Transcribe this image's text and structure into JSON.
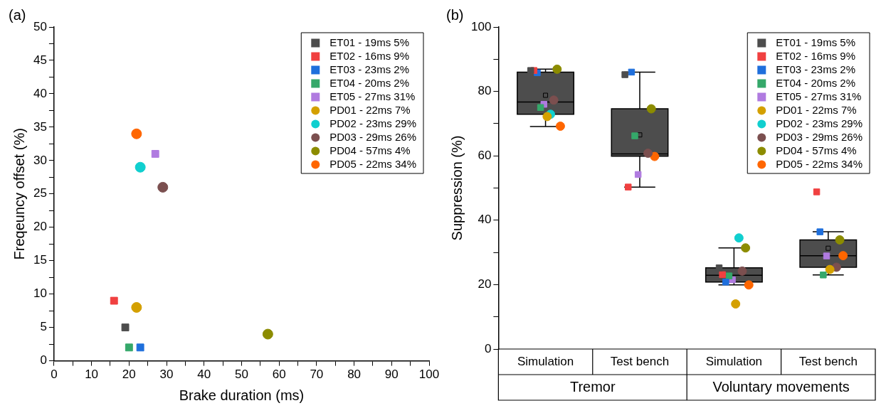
{
  "chart_data": [
    {
      "type": "scatter",
      "annotations": [
        "(a)"
      ],
      "xlabel": "Brake duration (ms)",
      "ylabel": "Freqeuncy offset (%)",
      "xlim": [
        0,
        100
      ],
      "xticks": [
        0,
        {
          "value": 5,
          "label": null
        },
        10,
        {
          "value": 15,
          "label": null
        },
        20,
        {
          "value": 25,
          "label": null
        },
        30,
        {
          "value": 35,
          "label": null
        },
        40,
        {
          "value": 45,
          "label": null
        },
        50,
        {
          "value": 55,
          "label": null
        },
        60,
        {
          "value": 65,
          "label": null
        },
        70,
        {
          "value": 75,
          "label": null
        },
        80,
        {
          "value": 85,
          "label": null
        },
        90,
        {
          "value": 95,
          "label": null
        },
        100
      ],
      "ylim": [
        0,
        50
      ],
      "yticks": [
        0,
        {
          "value": 2.5,
          "label": null
        },
        5,
        {
          "value": 7.5,
          "label": null
        },
        10,
        {
          "value": 12.5,
          "label": null
        },
        15,
        {
          "value": 17.5,
          "label": null
        },
        20,
        {
          "value": 22.5,
          "label": null
        },
        25,
        {
          "value": 27.5,
          "label": null
        },
        30,
        {
          "value": 32.5,
          "label": null
        },
        35,
        {
          "value": 37.5,
          "label": null
        },
        40,
        {
          "value": 42.5,
          "label": null
        },
        45,
        {
          "value": 47.5,
          "label": null
        },
        50
      ],
      "grid": false,
      "legend": "top right",
      "series": [
        {
          "name": "ET01 - 19ms 5%",
          "color": "#4d4d4d",
          "marker": "square",
          "x": [
            19
          ],
          "values": [
            5
          ]
        },
        {
          "name": "ET02 - 16ms 9%",
          "color": "#f04040",
          "marker": "square",
          "x": [
            16
          ],
          "values": [
            9
          ]
        },
        {
          "name": "ET03 - 23ms 2%",
          "color": "#1f6fdc",
          "marker": "square",
          "x": [
            23
          ],
          "values": [
            2
          ]
        },
        {
          "name": "ET04 - 20ms 2%",
          "color": "#35a86a",
          "marker": "square",
          "x": [
            20
          ],
          "values": [
            2
          ]
        },
        {
          "name": "ET05 - 27ms 31%",
          "color": "#b07be0",
          "marker": "square",
          "x": [
            27
          ],
          "values": [
            31
          ]
        },
        {
          "name": "PD01 - 22ms 7%",
          "color": "#d4a000",
          "marker": "circle",
          "x": [
            22
          ],
          "values": [
            8
          ]
        },
        {
          "name": "PD02 - 23ms 29%",
          "color": "#10cfcf",
          "marker": "circle",
          "x": [
            23
          ],
          "values": [
            29
          ]
        },
        {
          "name": "PD03 - 29ms 26%",
          "color": "#7b4f4f",
          "marker": "circle",
          "x": [
            29
          ],
          "values": [
            26
          ]
        },
        {
          "name": "PD04 - 57ms 4%",
          "color": "#8c8c00",
          "marker": "circle",
          "x": [
            57
          ],
          "values": [
            4
          ]
        },
        {
          "name": "PD05 - 22ms 34%",
          "color": "#ff6600",
          "marker": "circle",
          "x": [
            22
          ],
          "values": [
            34
          ]
        }
      ]
    },
    {
      "type": "box",
      "annotations": [
        "(b)",
        "Tremor",
        "Voluntary movements"
      ],
      "ylabel": "Suppression (%)",
      "categories": [
        "Simulation",
        "Test bench",
        "Simulation",
        "Test bench"
      ],
      "ylim": [
        0,
        100
      ],
      "yticks": [
        0,
        {
          "value": 10,
          "label": null
        },
        20,
        {
          "value": 30,
          "label": null
        },
        40,
        {
          "value": 50,
          "label": null
        },
        60,
        {
          "value": 70,
          "label": null
        },
        80,
        {
          "value": 90,
          "label": null
        },
        100
      ],
      "grid": false,
      "legend": "top right",
      "color": "#4d4d4d",
      "boxes": [
        {
          "low": 69.1,
          "q1": 72.9,
          "median": 76.7,
          "q3": 86,
          "high": 86.9,
          "mean": 78.8
        },
        {
          "low": 50.3,
          "q1": 59.9,
          "median": 60.6,
          "q3": 74.6,
          "high": 86,
          "mean": 66.5
        },
        {
          "low": 19.9,
          "q1": 20.8,
          "median": 22.9,
          "q3": 25.2,
          "high": 31.4
        },
        {
          "low": 23,
          "q1": 25.4,
          "median": 29,
          "q3": 33.9,
          "high": 36.4,
          "mean": 31.3
        }
      ],
      "series": [
        {
          "type": "scatter",
          "name": "ET01 - 19ms 5%",
          "color": "#4d4d4d",
          "marker": "square",
          "values": [
            86.5,
            85.2,
            25.2,
            null
          ]
        },
        {
          "type": "scatter",
          "name": "ET02 - 16ms 9%",
          "color": "#f04040",
          "marker": "square",
          "values": [
            86.5,
            50.3,
            23.1,
            48.8
          ]
        },
        {
          "type": "scatter",
          "name": "ET03 - 23ms 2%",
          "color": "#1f6fdc",
          "marker": "square",
          "values": [
            85.8,
            86,
            20.8,
            36.4
          ]
        },
        {
          "type": "scatter",
          "name": "ET04 - 20ms 2%",
          "color": "#35a86a",
          "marker": "square",
          "values": [
            75,
            66.2,
            22.7,
            23
          ]
        },
        {
          "type": "scatter",
          "name": "ET05 - 27ms 31%",
          "color": "#b07be0",
          "marker": "square",
          "values": [
            76,
            54.2,
            21.5,
            28.9
          ]
        },
        {
          "type": "scatter",
          "name": "PD01 - 22ms 7%",
          "color": "#d4a000",
          "marker": "circle",
          "values": [
            72.2,
            null,
            14,
            24.7
          ]
        },
        {
          "type": "scatter",
          "name": "PD02 - 23ms 29%",
          "color": "#10cfcf",
          "marker": "circle",
          "values": [
            72.9,
            null,
            34.5,
            null
          ]
        },
        {
          "type": "scatter",
          "name": "PD03 - 29ms 26%",
          "color": "#7b4f4f",
          "marker": "circle",
          "values": [
            77.3,
            60.8,
            24.2,
            25.4
          ]
        },
        {
          "type": "scatter",
          "name": "PD04 - 57ms 4%",
          "color": "#8c8c00",
          "marker": "circle",
          "values": [
            86.9,
            74.6,
            31.4,
            33.9
          ]
        },
        {
          "type": "scatter",
          "name": "PD05 - 22ms 34%",
          "color": "#ff6600",
          "marker": "circle",
          "values": [
            69.2,
            59.8,
            19.9,
            29
          ]
        }
      ]
    }
  ]
}
